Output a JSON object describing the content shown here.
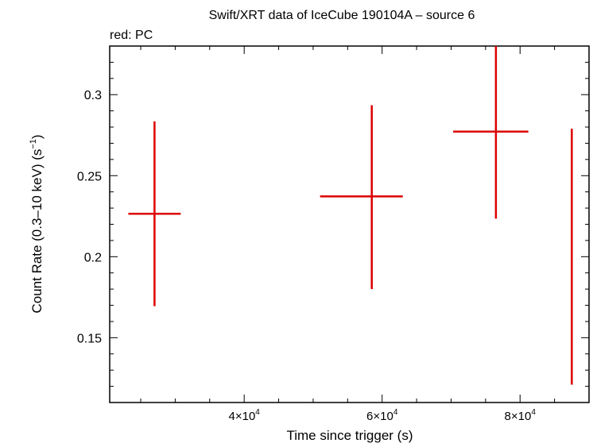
{
  "chart_data": {
    "type": "scatter",
    "title": "Swift/XRT data of IceCube 190104A – source 6",
    "subtitle": "red: PC",
    "xlabel": "Time since trigger (s)",
    "ylabel": "Count Rate (0.3–10 keV) (s",
    "ylabel_sup": "−1",
    "ylabel_end": ")",
    "xlim": [
      20500,
      90000
    ],
    "ylim": [
      0.11,
      0.33
    ],
    "x_ticks": [
      {
        "value": 40000,
        "base": "4×10",
        "exp": "4"
      },
      {
        "value": 60000,
        "base": "6×10",
        "exp": "4"
      },
      {
        "value": 80000,
        "base": "8×10",
        "exp": "4"
      }
    ],
    "y_ticks": [
      {
        "value": 0.15,
        "label": "0.15"
      },
      {
        "value": 0.2,
        "label": "0.2"
      },
      {
        "value": 0.25,
        "label": "0.25"
      },
      {
        "value": 0.3,
        "label": "0.3"
      }
    ],
    "series": [
      {
        "name": "PC",
        "color": "#dd0000",
        "points": [
          {
            "x": 27000,
            "xlo": 23200,
            "xhi": 30800,
            "y": 0.2265,
            "ylo": 0.1695,
            "yhi": 0.2835
          },
          {
            "x": 58500,
            "xlo": 51000,
            "xhi": 63000,
            "y": 0.2372,
            "ylo": 0.18,
            "yhi": 0.2935
          },
          {
            "x": 76500,
            "xlo": 70300,
            "xhi": 81200,
            "y": 0.2772,
            "ylo": 0.2235,
            "yhi": 0.33
          },
          {
            "x": 87500,
            "xlo": 87500,
            "xhi": 87500,
            "y": 0.2,
            "ylo": 0.121,
            "yhi": 0.279
          }
        ]
      }
    ]
  }
}
